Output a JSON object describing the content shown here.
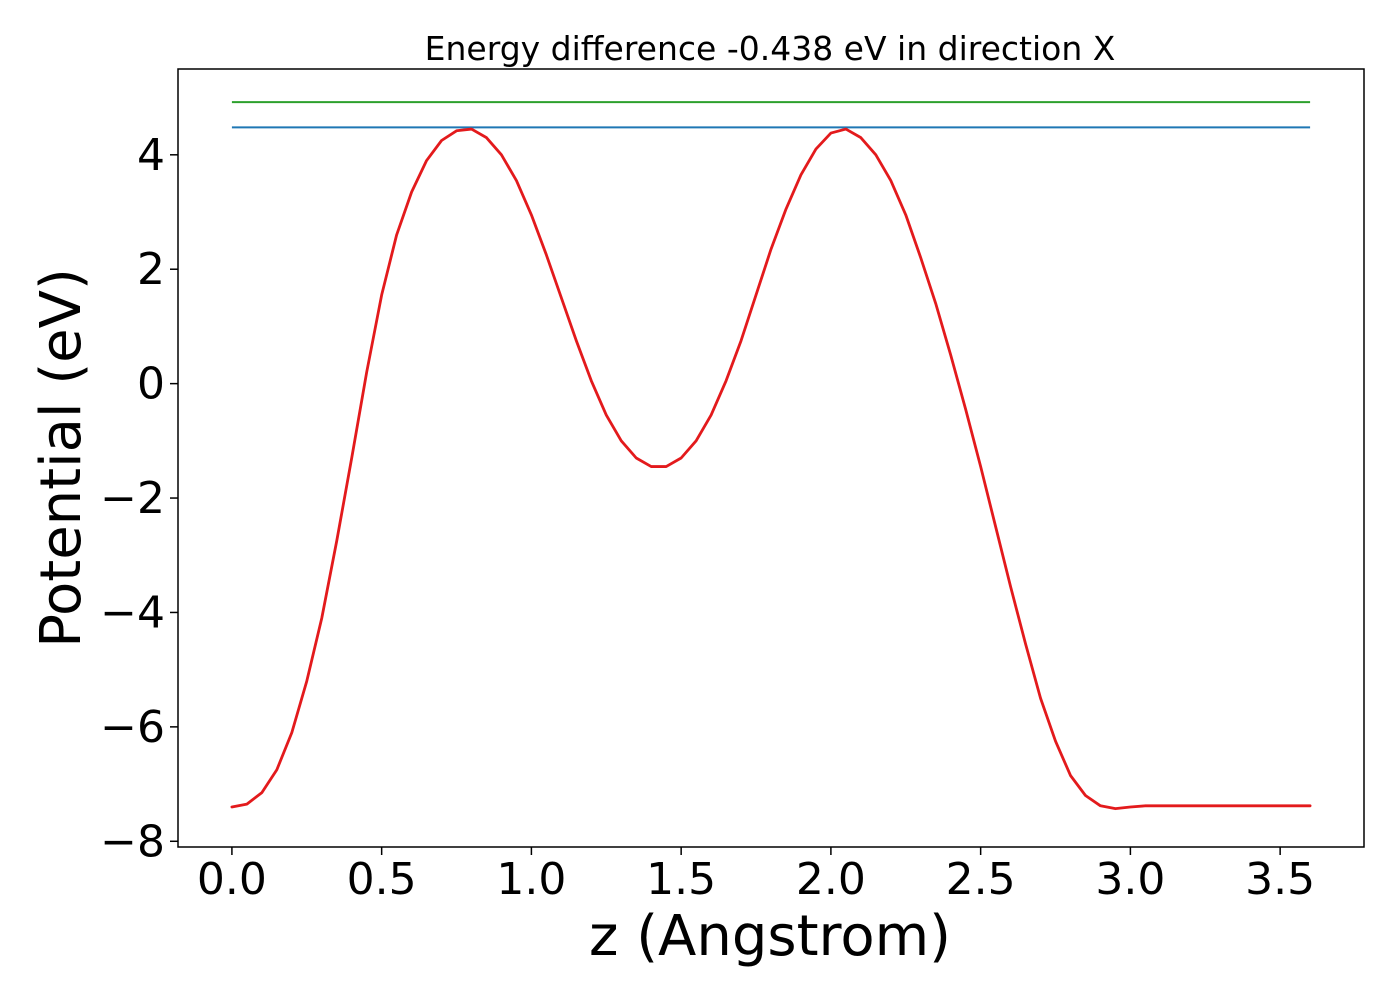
{
  "chart_data": {
    "type": "line",
    "title": "Energy difference -0.438 eV in direction X",
    "xlabel": "z (Angstrom)",
    "ylabel": "Potential (eV)",
    "xlim": [
      -0.18,
      3.78
    ],
    "ylim": [
      -8.1,
      5.5
    ],
    "x_ticks": [
      0.0,
      0.5,
      1.0,
      1.5,
      2.0,
      2.5,
      3.0,
      3.5
    ],
    "x_tick_labels": [
      "0.0",
      "0.5",
      "1.0",
      "1.5",
      "2.0",
      "2.5",
      "3.0",
      "3.5"
    ],
    "y_ticks": [
      -8,
      -6,
      -4,
      -2,
      0,
      2,
      4
    ],
    "y_tick_labels": [
      "−8",
      "−6",
      "−4",
      "−2",
      "0",
      "2",
      "4"
    ],
    "grid": false,
    "legend": "none",
    "horizontal_lines": [
      {
        "y": 4.92,
        "x_range": [
          0.0,
          3.6
        ],
        "color": "#2ca02c"
      },
      {
        "y": 4.48,
        "x_range": [
          0.0,
          3.6
        ],
        "color": "#1f77b4"
      }
    ],
    "series": [
      {
        "color": "#e31a1c",
        "x": [
          0.0,
          0.05,
          0.1,
          0.15,
          0.2,
          0.25,
          0.3,
          0.35,
          0.4,
          0.45,
          0.5,
          0.55,
          0.6,
          0.65,
          0.7,
          0.75,
          0.8,
          0.85,
          0.9,
          0.95,
          1.0,
          1.05,
          1.1,
          1.15,
          1.2,
          1.25,
          1.3,
          1.35,
          1.4,
          1.45,
          1.5,
          1.55,
          1.6,
          1.65,
          1.7,
          1.75,
          1.8,
          1.85,
          1.9,
          1.95,
          2.0,
          2.05,
          2.1,
          2.15,
          2.2,
          2.25,
          2.3,
          2.35,
          2.4,
          2.45,
          2.5,
          2.55,
          2.6,
          2.65,
          2.7,
          2.75,
          2.8,
          2.85,
          2.9,
          2.95,
          3.0,
          3.05,
          3.1,
          3.15,
          3.2,
          3.25,
          3.3,
          3.35,
          3.4,
          3.45,
          3.5,
          3.55,
          3.6
        ],
        "y": [
          -7.4,
          -7.35,
          -7.15,
          -6.75,
          -6.1,
          -5.2,
          -4.1,
          -2.75,
          -1.3,
          0.2,
          1.55,
          2.6,
          3.35,
          3.9,
          4.25,
          4.42,
          4.45,
          4.3,
          4.0,
          3.55,
          2.95,
          2.25,
          1.5,
          0.75,
          0.05,
          -0.55,
          -1.0,
          -1.3,
          -1.45,
          -1.45,
          -1.3,
          -1.0,
          -0.55,
          0.05,
          0.75,
          1.55,
          2.35,
          3.05,
          3.65,
          4.1,
          4.38,
          4.45,
          4.3,
          4.0,
          3.55,
          2.95,
          2.2,
          1.4,
          0.5,
          -0.45,
          -1.45,
          -2.5,
          -3.55,
          -4.55,
          -5.5,
          -6.25,
          -6.85,
          -7.2,
          -7.38,
          -7.43,
          -7.4,
          -7.38,
          -7.38,
          -7.38,
          -7.38,
          -7.38,
          -7.38,
          -7.38,
          -7.38,
          -7.38,
          -7.38,
          -7.38,
          -7.38
        ]
      }
    ]
  }
}
